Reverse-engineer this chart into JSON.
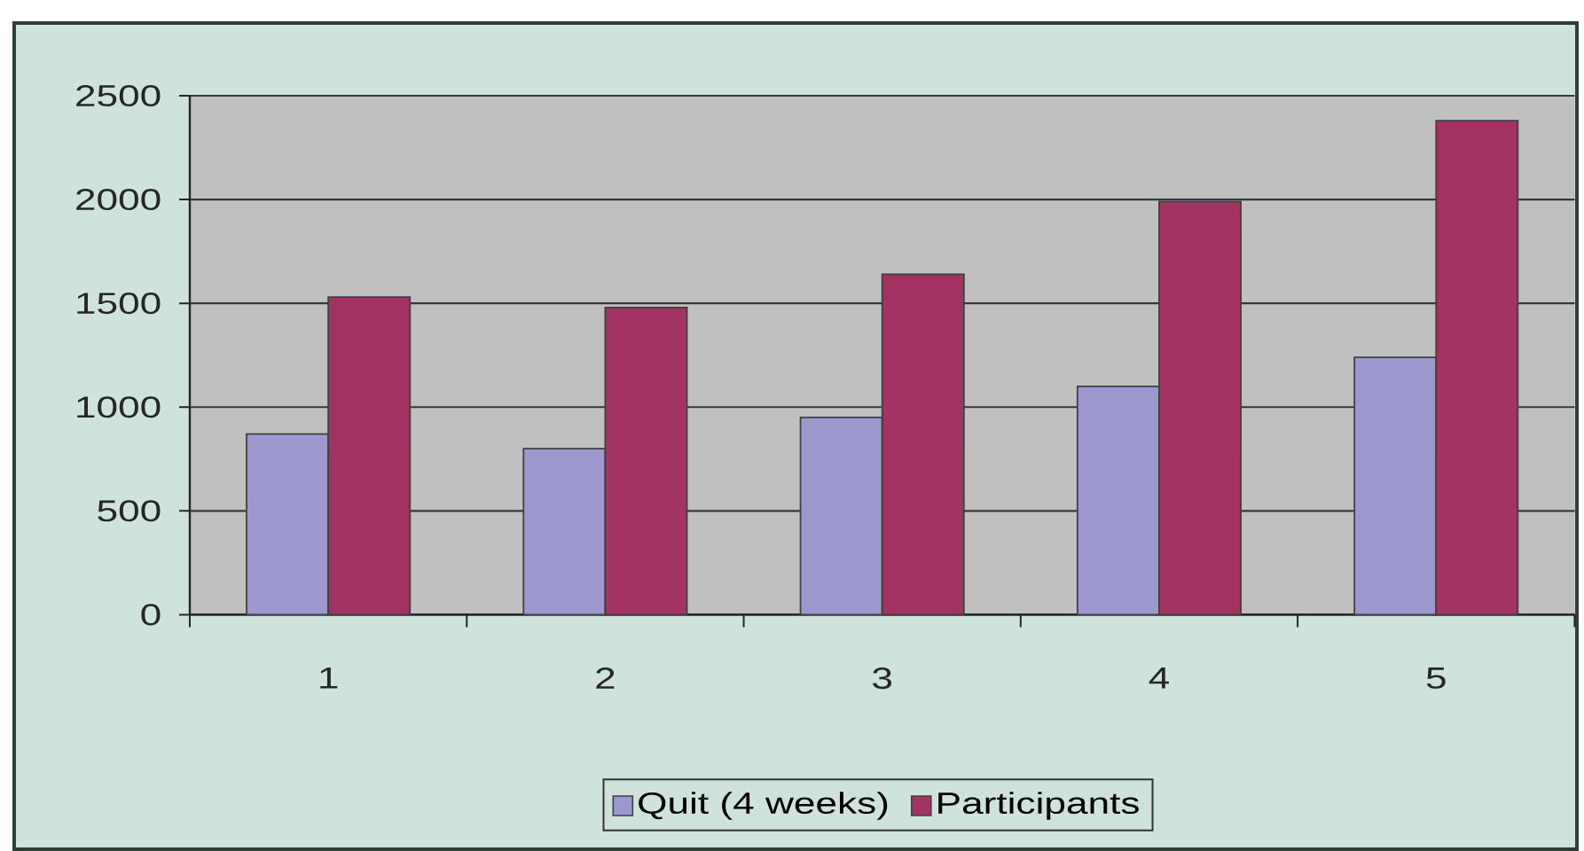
{
  "chart_data": {
    "type": "bar",
    "categories": [
      "1",
      "2",
      "3",
      "4",
      "5"
    ],
    "series": [
      {
        "name": "Quit (4 weeks)",
        "color": "#9c97cc",
        "values": [
          870,
          800,
          950,
          1100,
          1240
        ]
      },
      {
        "name": "Participants",
        "color": "#a23363",
        "values": [
          1530,
          1480,
          1640,
          1990,
          2380
        ]
      }
    ],
    "ylim": [
      0,
      2500
    ],
    "yticks": [
      0,
      500,
      1000,
      1500,
      2000,
      2500
    ],
    "grid": "y",
    "legend": "bottom"
  }
}
